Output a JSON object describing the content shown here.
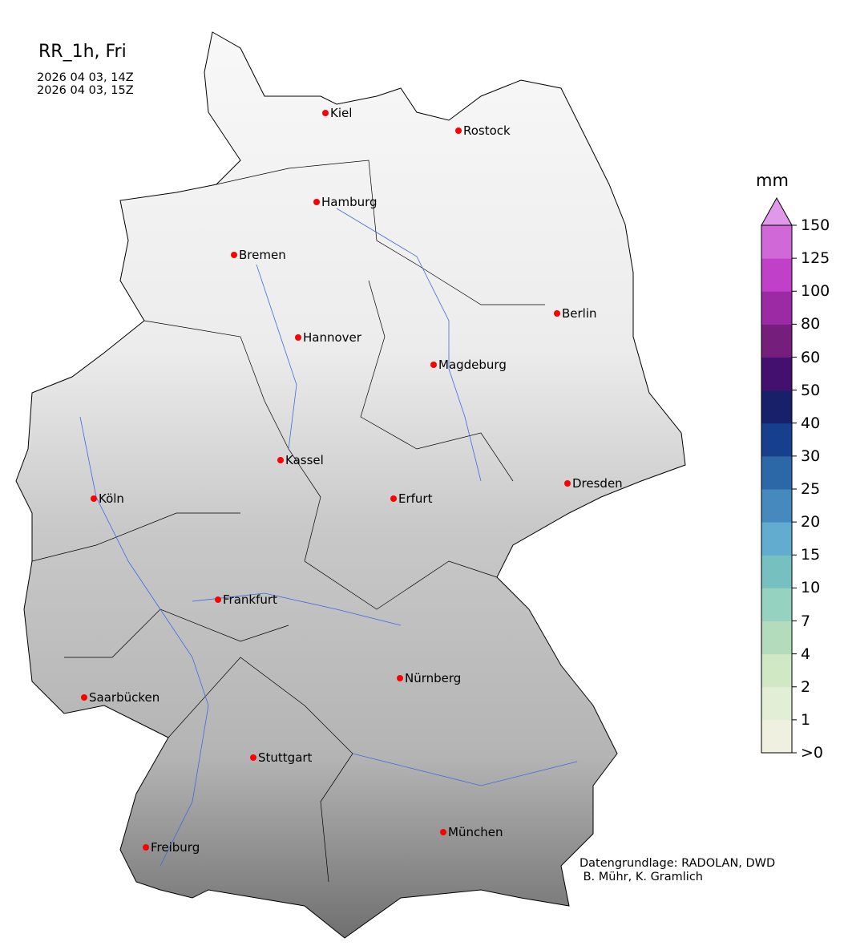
{
  "header": {
    "title": "RR_1h, Fri",
    "period_start": "2026 04 03, 14Z",
    "period_end": "2026 04 03, 15Z"
  },
  "map": {
    "region": "Germany",
    "base_layer": "grayscale terrain relief",
    "river_color": "#4169e1",
    "city_marker_color": "#ff0000",
    "cities": [
      "Kiel",
      "Rostock",
      "Hamburg",
      "Bremen",
      "Berlin",
      "Hannover",
      "Magdeburg",
      "Kassel",
      "Köln",
      "Erfurt",
      "Dresden",
      "Frankfurt",
      "Nürnberg",
      "Saarbücken",
      "Stuttgart",
      "München",
      "Freiburg"
    ]
  },
  "colorbar": {
    "unit": "mm",
    "extend": "max",
    "ticks": [
      ">0",
      "1",
      "2",
      "4",
      "7",
      "10",
      "15",
      "20",
      "25",
      "30",
      "40",
      "50",
      "60",
      "80",
      "100",
      "125",
      "150"
    ],
    "colors": [
      "#f0f0e0",
      "#e2efd6",
      "#d0e8c4",
      "#b2dcbb",
      "#96d2c0",
      "#76c0c0",
      "#62acd0",
      "#4689bc",
      "#2c67a8",
      "#163f8e",
      "#18206a",
      "#441070",
      "#761e7c",
      "#9c2aa4",
      "#c040c8",
      "#d068d8"
    ],
    "over_color": "#e098e8"
  },
  "credit": "Datengrundlage: RADOLAN, DWD\n B. Mühr, K. Gramlich"
}
